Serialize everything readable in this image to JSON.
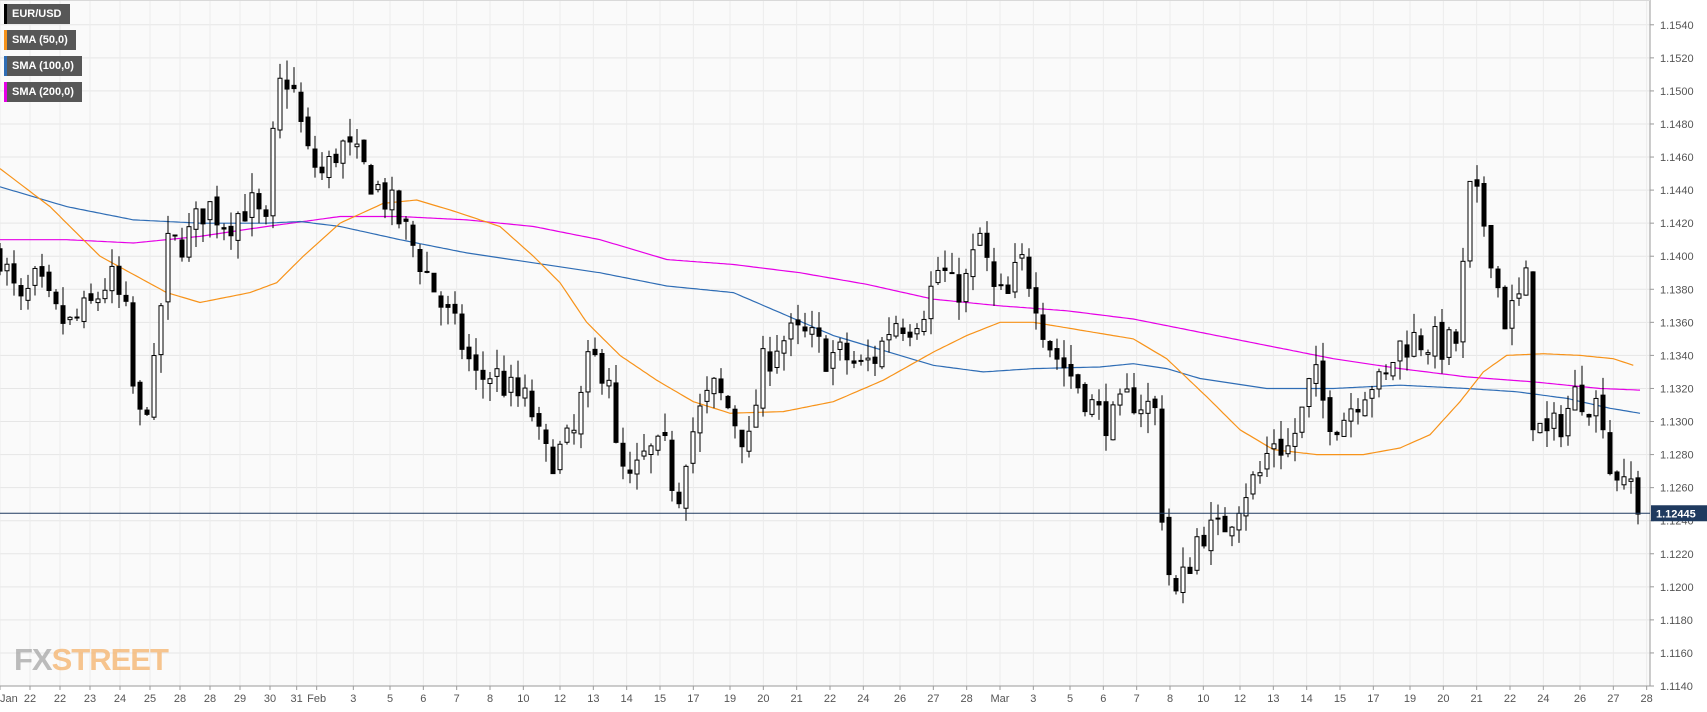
{
  "legend": [
    {
      "label": "EUR/USD",
      "color": "#000000"
    },
    {
      "label": "SMA (50,0)",
      "color": "#f7931a"
    },
    {
      "label": "SMA (100,0)",
      "color": "#2f6db5"
    },
    {
      "label": "SMA (200,0)",
      "color": "#e600e6"
    }
  ],
  "brand": {
    "fx": "FX",
    "street": "STREET"
  },
  "current_price_label": "1.12445",
  "chart_data": {
    "type": "candlestick",
    "symbol": "EUR/USD",
    "ylim": [
      1.114,
      1.1555
    ],
    "yticks": [
      "1.1140",
      "1.1160",
      "1.1180",
      "1.1200",
      "1.1220",
      "1.1240",
      "1.1260",
      "1.1280",
      "1.1300",
      "1.1320",
      "1.1340",
      "1.1360",
      "1.1380",
      "1.1400",
      "1.1420",
      "1.1440",
      "1.1460",
      "1.1480",
      "1.1500",
      "1.1520",
      "1.1540"
    ],
    "xticks": [
      {
        "label": "Jan",
        "i": 0
      },
      {
        "label": "22",
        "i": 18
      },
      {
        "label": "22",
        "i": 36
      },
      {
        "label": "23",
        "i": 54
      },
      {
        "label": "24",
        "i": 72
      },
      {
        "label": "25",
        "i": 90
      },
      {
        "label": "28",
        "i": 108
      },
      {
        "label": "28",
        "i": 126
      },
      {
        "label": "29",
        "i": 144
      },
      {
        "label": "30",
        "i": 162
      },
      {
        "label": "31",
        "i": 178
      },
      {
        "label": "Feb",
        "i": 190
      },
      {
        "label": "3",
        "i": 212
      },
      {
        "label": "5",
        "i": 234
      },
      {
        "label": "6",
        "i": 254
      },
      {
        "label": "7",
        "i": 274
      },
      {
        "label": "8",
        "i": 294
      },
      {
        "label": "10",
        "i": 314
      },
      {
        "label": "12",
        "i": 336
      },
      {
        "label": "13",
        "i": 356
      },
      {
        "label": "14",
        "i": 376
      },
      {
        "label": "15",
        "i": 396
      },
      {
        "label": "17",
        "i": 416
      },
      {
        "label": "19",
        "i": 438
      },
      {
        "label": "20",
        "i": 458
      },
      {
        "label": "21",
        "i": 478
      },
      {
        "label": "22",
        "i": 498
      },
      {
        "label": "24",
        "i": 518
      },
      {
        "label": "26",
        "i": 540
      },
      {
        "label": "27",
        "i": 560
      },
      {
        "label": "28",
        "i": 580
      },
      {
        "label": "Mar",
        "i": 600
      },
      {
        "label": "3",
        "i": 620
      },
      {
        "label": "5",
        "i": 642
      },
      {
        "label": "6",
        "i": 662
      },
      {
        "label": "7",
        "i": 682
      },
      {
        "label": "8",
        "i": 702
      },
      {
        "label": "10",
        "i": 722
      },
      {
        "label": "12",
        "i": 744
      },
      {
        "label": "13",
        "i": 764
      },
      {
        "label": "14",
        "i": 784
      },
      {
        "label": "15",
        "i": 804
      },
      {
        "label": "17",
        "i": 824
      },
      {
        "label": "19",
        "i": 846
      },
      {
        "label": "20",
        "i": 866
      },
      {
        "label": "21",
        "i": 886
      },
      {
        "label": "22",
        "i": 906
      },
      {
        "label": "24",
        "i": 926
      },
      {
        "label": "26",
        "i": 948
      },
      {
        "label": "27",
        "i": 968
      },
      {
        "label": "28",
        "i": 988
      }
    ],
    "current_price": 1.12445,
    "grid": true,
    "colors": {
      "up": "#ffffff",
      "down": "#000000",
      "sma50": "#f7931a",
      "sma100": "#2f6db5",
      "sma200": "#e600e6",
      "priceline": "#1f3a5f"
    },
    "anchors": [
      [
        0,
        1.1402
      ],
      [
        12,
        1.1368
      ],
      [
        22,
        1.1385
      ],
      [
        32,
        1.1365
      ],
      [
        42,
        1.1358
      ],
      [
        55,
        1.137
      ],
      [
        66,
        1.1388
      ],
      [
        76,
        1.1362
      ],
      [
        82,
        1.1295
      ],
      [
        92,
        1.1325
      ],
      [
        100,
        1.1405
      ],
      [
        112,
        1.141
      ],
      [
        124,
        1.1432
      ],
      [
        136,
        1.142
      ],
      [
        150,
        1.1432
      ],
      [
        160,
        1.1415
      ],
      [
        166,
        1.15
      ],
      [
        174,
        1.151
      ],
      [
        184,
        1.1462
      ],
      [
        194,
        1.1448
      ],
      [
        204,
        1.1468
      ],
      [
        214,
        1.1458
      ],
      [
        224,
        1.1445
      ],
      [
        236,
        1.1428
      ],
      [
        246,
        1.141
      ],
      [
        256,
        1.139
      ],
      [
        266,
        1.1368
      ],
      [
        276,
        1.135
      ],
      [
        286,
        1.1325
      ],
      [
        296,
        1.133
      ],
      [
        306,
        1.1318
      ],
      [
        318,
        1.131
      ],
      [
        326,
        1.1278
      ],
      [
        334,
        1.128
      ],
      [
        344,
        1.129
      ],
      [
        354,
        1.1338
      ],
      [
        366,
        1.133
      ],
      [
        370,
        1.1275
      ],
      [
        378,
        1.1262
      ],
      [
        388,
        1.128
      ],
      [
        400,
        1.1282
      ],
      [
        406,
        1.125
      ],
      [
        412,
        1.1285
      ],
      [
        420,
        1.1305
      ],
      [
        428,
        1.132
      ],
      [
        436,
        1.131
      ],
      [
        444,
        1.1295
      ],
      [
        450,
        1.1285
      ],
      [
        456,
        1.133
      ],
      [
        466,
        1.1348
      ],
      [
        476,
        1.1352
      ],
      [
        486,
        1.135
      ],
      [
        496,
        1.134
      ],
      [
        506,
        1.134
      ],
      [
        516,
        1.1332
      ],
      [
        526,
        1.134
      ],
      [
        536,
        1.1362
      ],
      [
        546,
        1.136
      ],
      [
        556,
        1.1372
      ],
      [
        564,
        1.1395
      ],
      [
        572,
        1.1378
      ],
      [
        580,
        1.1385
      ],
      [
        588,
        1.1412
      ],
      [
        596,
        1.1378
      ],
      [
        604,
        1.1372
      ],
      [
        612,
        1.1398
      ],
      [
        620,
        1.1382
      ],
      [
        626,
        1.1358
      ],
      [
        632,
        1.1342
      ],
      [
        640,
        1.1332
      ],
      [
        650,
        1.1318
      ],
      [
        658,
        1.1305
      ],
      [
        668,
        1.13
      ],
      [
        678,
        1.1315
      ],
      [
        688,
        1.131
      ],
      [
        694,
        1.1305
      ],
      [
        698,
        1.1232
      ],
      [
        704,
        1.119
      ],
      [
        712,
        1.121
      ],
      [
        720,
        1.1235
      ],
      [
        730,
        1.1232
      ],
      [
        738,
        1.1242
      ],
      [
        746,
        1.1258
      ],
      [
        756,
        1.1268
      ],
      [
        764,
        1.129
      ],
      [
        772,
        1.1282
      ],
      [
        780,
        1.13
      ],
      [
        788,
        1.133
      ],
      [
        796,
        1.1305
      ],
      [
        804,
        1.13
      ],
      [
        812,
        1.1312
      ],
      [
        822,
        1.1325
      ],
      [
        830,
        1.132
      ],
      [
        838,
        1.1345
      ],
      [
        848,
        1.135
      ],
      [
        858,
        1.1348
      ],
      [
        868,
        1.1345
      ],
      [
        876,
        1.135
      ],
      [
        880,
        1.144
      ],
      [
        888,
        1.143
      ],
      [
        896,
        1.1398
      ],
      [
        902,
        1.1362
      ],
      [
        910,
        1.137
      ],
      [
        916,
        1.1385
      ],
      [
        920,
        1.13
      ],
      [
        928,
        1.129
      ],
      [
        938,
        1.1302
      ],
      [
        946,
        1.1318
      ],
      [
        956,
        1.1312
      ],
      [
        962,
        1.1305
      ],
      [
        966,
        1.1272
      ],
      [
        972,
        1.1268
      ],
      [
        976,
        1.125
      ],
      [
        982,
        1.128
      ],
      [
        986,
        1.1244
      ]
    ],
    "sma50": [
      [
        0,
        1.1453
      ],
      [
        30,
        1.143
      ],
      [
        60,
        1.14
      ],
      [
        100,
        1.1378
      ],
      [
        120,
        1.1372
      ],
      [
        150,
        1.1378
      ],
      [
        166,
        1.1384
      ],
      [
        182,
        1.14
      ],
      [
        204,
        1.142
      ],
      [
        230,
        1.1432
      ],
      [
        250,
        1.1434
      ],
      [
        270,
        1.1428
      ],
      [
        300,
        1.1418
      ],
      [
        320,
        1.14
      ],
      [
        336,
        1.1384
      ],
      [
        352,
        1.136
      ],
      [
        372,
        1.134
      ],
      [
        394,
        1.1325
      ],
      [
        416,
        1.1312
      ],
      [
        438,
        1.1305
      ],
      [
        470,
        1.1306
      ],
      [
        500,
        1.1312
      ],
      [
        530,
        1.1325
      ],
      [
        560,
        1.1342
      ],
      [
        580,
        1.1352
      ],
      [
        600,
        1.136
      ],
      [
        620,
        1.136
      ],
      [
        650,
        1.1355
      ],
      [
        680,
        1.135
      ],
      [
        700,
        1.1338
      ],
      [
        724,
        1.1315
      ],
      [
        744,
        1.1295
      ],
      [
        764,
        1.1283
      ],
      [
        790,
        1.128
      ],
      [
        818,
        1.128
      ],
      [
        840,
        1.1284
      ],
      [
        858,
        1.1292
      ],
      [
        876,
        1.1312
      ],
      [
        890,
        1.133
      ],
      [
        904,
        1.134
      ],
      [
        926,
        1.1341
      ],
      [
        948,
        1.134
      ],
      [
        968,
        1.1338
      ],
      [
        980,
        1.1334
      ]
    ],
    "sma100": [
      [
        0,
        1.1442
      ],
      [
        40,
        1.143
      ],
      [
        80,
        1.1422
      ],
      [
        120,
        1.142
      ],
      [
        160,
        1.142
      ],
      [
        180,
        1.1421
      ],
      [
        204,
        1.1418
      ],
      [
        240,
        1.141
      ],
      [
        280,
        1.1402
      ],
      [
        320,
        1.1396
      ],
      [
        360,
        1.139
      ],
      [
        400,
        1.1382
      ],
      [
        440,
        1.1378
      ],
      [
        470,
        1.1365
      ],
      [
        500,
        1.1352
      ],
      [
        530,
        1.1343
      ],
      [
        560,
        1.1334
      ],
      [
        590,
        1.133
      ],
      [
        620,
        1.1332
      ],
      [
        660,
        1.1333
      ],
      [
        680,
        1.1335
      ],
      [
        700,
        1.1332
      ],
      [
        720,
        1.1326
      ],
      [
        760,
        1.132
      ],
      [
        800,
        1.132
      ],
      [
        840,
        1.1322
      ],
      [
        880,
        1.132
      ],
      [
        910,
        1.1318
      ],
      [
        940,
        1.1314
      ],
      [
        966,
        1.1308
      ],
      [
        984,
        1.1305
      ]
    ],
    "sma200": [
      [
        0,
        1.141
      ],
      [
        40,
        1.141
      ],
      [
        80,
        1.1408
      ],
      [
        120,
        1.1412
      ],
      [
        160,
        1.1418
      ],
      [
        204,
        1.1424
      ],
      [
        240,
        1.1424
      ],
      [
        280,
        1.1422
      ],
      [
        320,
        1.1418
      ],
      [
        360,
        1.141
      ],
      [
        400,
        1.1398
      ],
      [
        440,
        1.1395
      ],
      [
        480,
        1.139
      ],
      [
        520,
        1.1383
      ],
      [
        560,
        1.1374
      ],
      [
        600,
        1.137
      ],
      [
        640,
        1.1367
      ],
      [
        680,
        1.1362
      ],
      [
        720,
        1.1354
      ],
      [
        760,
        1.1346
      ],
      [
        800,
        1.1338
      ],
      [
        840,
        1.1332
      ],
      [
        880,
        1.1327
      ],
      [
        920,
        1.1324
      ],
      [
        960,
        1.132
      ],
      [
        984,
        1.1319
      ]
    ]
  }
}
